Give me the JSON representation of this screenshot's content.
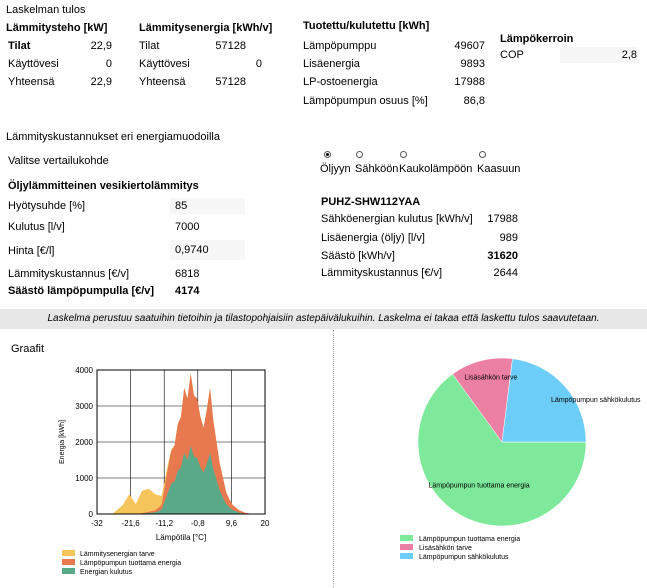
{
  "results_title": "Laskelman tulos",
  "heating_power": {
    "header": "Lämmitysteho [kW]",
    "rows": [
      {
        "label": "Tilat",
        "value": "22,9"
      },
      {
        "label": "Käyttövesi",
        "value": "0"
      },
      {
        "label": "Yhteensä",
        "value": "22,9"
      }
    ]
  },
  "heating_energy": {
    "header": "Lämmitysenergia [kWh/v]",
    "rows": [
      {
        "label": "Tilat",
        "value": "57128"
      },
      {
        "label": "Käyttövesi",
        "value": "0"
      },
      {
        "label": "Yhteensä",
        "value": "57128"
      }
    ]
  },
  "produced": {
    "header": "Tuotettu/kulutettu [kWh]",
    "rows": [
      {
        "label": "Lämpöpumppu",
        "value": "49607"
      },
      {
        "label": "Lisäenergia",
        "value": "9893"
      },
      {
        "label": "LP-ostoenergia",
        "value": "17988"
      },
      {
        "label": "Lämpöpumpun osuus [%]",
        "value": "86,8"
      }
    ]
  },
  "cop": {
    "header": "Lämpökerroin",
    "label": "COP",
    "value": "2,8"
  },
  "costs_title": "Lämmityskustannukset eri energiamuodoilla",
  "compare_label": "Valitse vertailukohde",
  "options": [
    "Öljyyn",
    "Sähköön",
    "Kaukolämpöön",
    "Kaasuun"
  ],
  "selected_option": 0,
  "oil": {
    "title": "Öljylämmitteinen vesikiertolämmitys",
    "efficiency_label": "Hyötysuhde [%]",
    "efficiency_value": "85",
    "consumption_label": "Kulutus [l/v]",
    "consumption_value": "7000",
    "price_label": "Hinta [€/l]",
    "price_value": "0,9740",
    "cost_label": "Lämmityskustannus [€/v]",
    "cost_value": "6818",
    "saving_label": "Säästö lämpöpumpulla [€/v]",
    "saving_value": "4174"
  },
  "pump": {
    "model": "PUHZ-SHW112YAA",
    "elec_label": "Sähköenergian kulutus [kWh/v]",
    "elec_value": "17988",
    "extra_label": "Lisäenergia (öljy) [l/v]",
    "extra_value": "989",
    "saving_label": "Säästö [kWh/v]",
    "saving_value": "31620",
    "cost_label": "Lämmityskustannus [€/v]",
    "cost_value": "2644"
  },
  "note": "Laskelma perustuu saatuihin tietoihin ja tilastopohjaisiin astepäivälukuihin. Laskelma ei takaa että laskettu tulos saavutetaan.",
  "graphs_title": "Graafit",
  "colors": {
    "demand": "#f5c45a",
    "produced": "#e8784e",
    "consumption": "#5aaa8a",
    "pie_green": "#7ee99a",
    "pie_pink": "#ec7fa4",
    "pie_blue": "#6ccdf8"
  },
  "chart_data": [
    {
      "type": "area",
      "title": "",
      "xlabel": "Lämpötila [°C]",
      "ylabel": "Energia [kWh]",
      "xlim": [
        -32,
        20
      ],
      "ylim": [
        0,
        4000
      ],
      "x_ticks": [
        "-32",
        "-21,6",
        "-11,2",
        "-0,8",
        "9,6",
        "20"
      ],
      "y_ticks": [
        "0",
        "1000",
        "2000",
        "3000",
        "4000"
      ],
      "grid": true,
      "legend_position": "bottom",
      "series": [
        {
          "name": "Lämmitysenergian tarve",
          "x": [
            -32,
            -27,
            -24,
            -22,
            -20,
            -18,
            -16,
            -14,
            -12,
            -10,
            -9,
            -8,
            -7,
            -6,
            -5,
            -4,
            -3,
            -2,
            -1,
            0,
            1,
            2,
            3,
            4,
            5,
            6,
            7,
            8,
            9,
            10,
            12,
            14,
            16
          ],
          "values": [
            0,
            20,
            250,
            550,
            280,
            650,
            700,
            550,
            500,
            1400,
            1800,
            1900,
            2500,
            2700,
            3500,
            3200,
            3900,
            3300,
            3200,
            2700,
            2400,
            2900,
            3500,
            2600,
            2000,
            1400,
            1000,
            600,
            400,
            250,
            100,
            30,
            0
          ]
        },
        {
          "name": "Lämpöpumpun tuottama energia",
          "x": [
            -32,
            -27,
            -24,
            -22,
            -20,
            -18,
            -16,
            -14,
            -12,
            -10,
            -9,
            -8,
            -7,
            -6,
            -5,
            -4,
            -3,
            -2,
            -1,
            0,
            1,
            2,
            3,
            4,
            5,
            6,
            7,
            8,
            9,
            10,
            12,
            14,
            16
          ],
          "values": [
            0,
            0,
            0,
            0,
            0,
            20,
            60,
            100,
            250,
            1300,
            1750,
            1900,
            2500,
            2700,
            3500,
            3200,
            3900,
            3300,
            3200,
            2700,
            2400,
            2900,
            3500,
            2600,
            2000,
            1400,
            1000,
            600,
            400,
            250,
            100,
            30,
            0
          ]
        },
        {
          "name": "Energian kulutus",
          "x": [
            -32,
            -27,
            -24,
            -22,
            -20,
            -18,
            -16,
            -14,
            -12,
            -10,
            -9,
            -8,
            -7,
            -6,
            -5,
            -4,
            -3,
            -2,
            -1,
            0,
            1,
            2,
            3,
            4,
            5,
            6,
            7,
            8,
            9,
            10,
            12,
            14,
            16
          ],
          "values": [
            0,
            0,
            0,
            0,
            0,
            10,
            30,
            50,
            120,
            620,
            850,
            900,
            1200,
            1300,
            1700,
            1500,
            1900,
            1600,
            1550,
            1300,
            1150,
            1400,
            1700,
            1250,
            950,
            650,
            450,
            280,
            180,
            110,
            40,
            10,
            0
          ]
        }
      ]
    },
    {
      "type": "pie",
      "title": "",
      "slices": [
        {
          "name": "Lämpöpumpun tuottama energia",
          "value": 65
        },
        {
          "name": "Lisäsähkön tarve",
          "value": 12
        },
        {
          "name": "Lämpöpumpun sähkökulutus",
          "value": 23
        }
      ],
      "legend_position": "bottom"
    }
  ]
}
